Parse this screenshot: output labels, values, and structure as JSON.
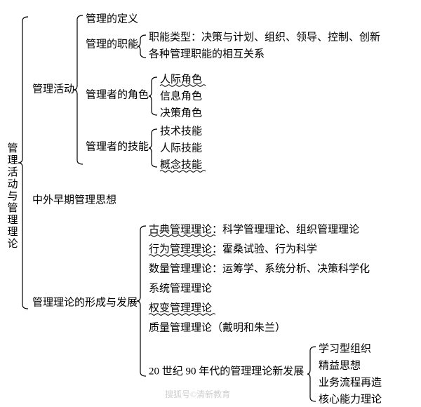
{
  "tree": {
    "root": "管理活动与管理理论",
    "branches": [
      {
        "label": "管理活动",
        "children": [
          {
            "label": "管理的定义"
          },
          {
            "label": "管理的职能",
            "children": [
              {
                "label": "职能类型：决策与计划、组织、领导、控制、创新"
              },
              {
                "label": "各种管理职能的相互关系"
              }
            ]
          },
          {
            "label": "管理者的角色",
            "children": [
              {
                "label": "人际角色",
                "underline": "wavy"
              },
              {
                "label": "信息角色"
              },
              {
                "label": "决策角色"
              }
            ]
          },
          {
            "label": "管理者的技能",
            "children": [
              {
                "label": "技术技能"
              },
              {
                "label": "人际技能"
              },
              {
                "label": "概念技能",
                "underline": "wavy"
              }
            ]
          }
        ]
      },
      {
        "label": "中外早期管理思想"
      },
      {
        "label": "管理理论的形成与发展",
        "children": [
          {
            "label": "古典管理理论：科学管理理论、组织管理理论",
            "underline_partial": "古典管理理论"
          },
          {
            "label": "行为管理理论：霍桑试验、行为科学",
            "underline_partial": "行为管理理论"
          },
          {
            "label": "数量管理理论：运筹学、系统分析、决策科学化"
          },
          {
            "label": "系统管理理论"
          },
          {
            "label": "权变管理理论",
            "underline": "wavy"
          },
          {
            "label": "质量管理理论（戴明和朱兰）"
          },
          {
            "label": "20 世纪 90 年代的管理理论新发展",
            "children": [
              {
                "label": "学习型组织"
              },
              {
                "label": "精益思想"
              },
              {
                "label": "业务流程再造"
              },
              {
                "label": "核心能力理论",
                "faded": true
              }
            ]
          }
        ]
      }
    ]
  },
  "style": {
    "font_size": 15,
    "line_height": 26,
    "text_color": "#000000",
    "background": "#ffffff",
    "bracket_stroke": "#000000",
    "bracket_width": 1.2,
    "watermark_color": "#bcbcbc"
  },
  "watermark": "搜狐号©清新教育"
}
